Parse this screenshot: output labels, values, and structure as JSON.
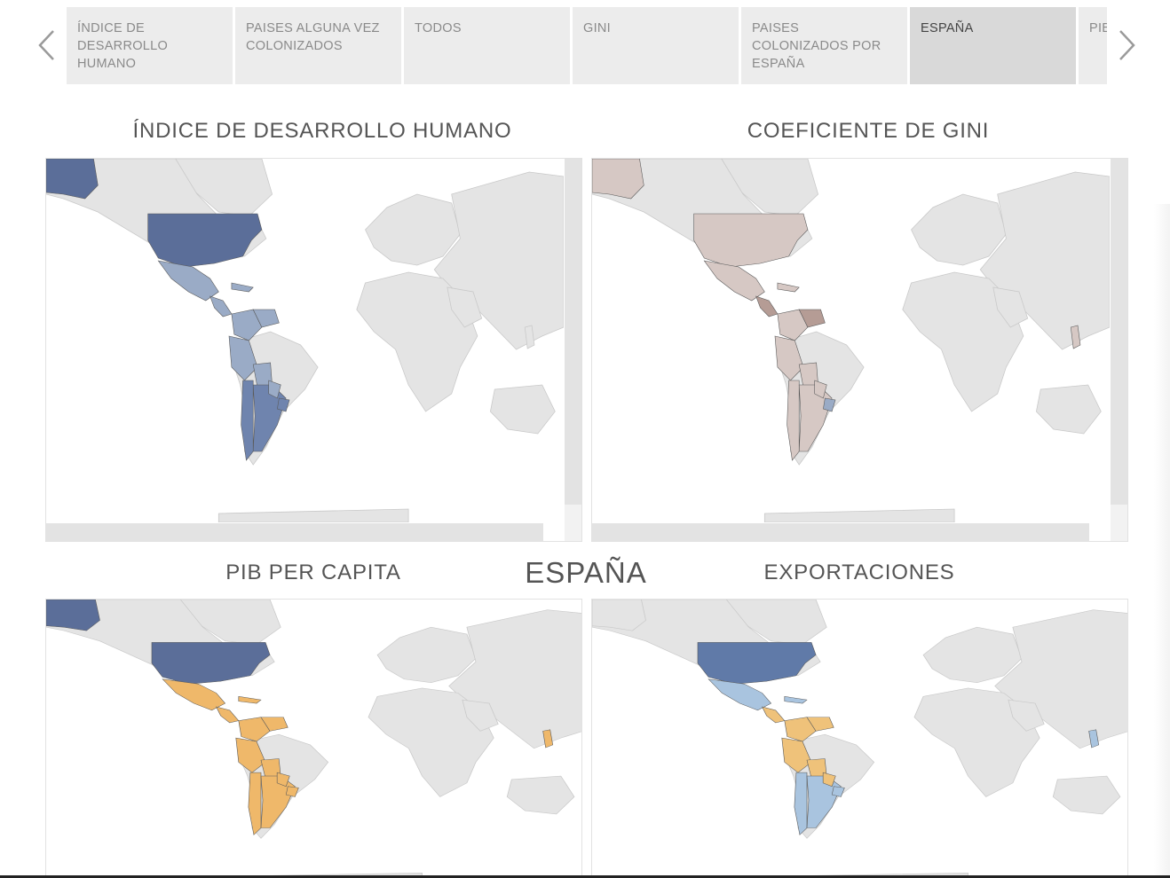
{
  "nav": {
    "prev_label": "Anterior",
    "next_label": "Siguiente"
  },
  "tabs": [
    {
      "label": "ÍNDICE DE DESARROLLO HUMANO",
      "active": false
    },
    {
      "label": "PAISES ALGUNA VEZ COLONIZADOS",
      "active": false
    },
    {
      "label": "TODOS",
      "active": false
    },
    {
      "label": "GINI",
      "active": false
    },
    {
      "label": "PAISES COLONIZADOS POR ESPAÑA",
      "active": false
    },
    {
      "label": "ESPAÑA",
      "active": true
    },
    {
      "label": "PIB",
      "active": false
    }
  ],
  "dashboard": {
    "main_title": "ESPAÑA",
    "maps": [
      {
        "id": "idh",
        "title": "ÍNDICE DE DESARROLLO HUMANO"
      },
      {
        "id": "gini",
        "title": "COEFICIENTE DE GINI"
      },
      {
        "id": "pib",
        "title": "PIB PER CAPITA"
      },
      {
        "id": "export",
        "title": "EXPORTACIONES"
      }
    ]
  },
  "colors": {
    "land": "#e4e4e4",
    "border": "#c9c9c9",
    "idh_high": "#5b6e99",
    "idh_mid": "#9aabc6",
    "idh_strong": "#6f84ae",
    "gini_light": "#d6c8c4",
    "gini_dark": "#b59c95",
    "pib_orange": "#efb86a",
    "exp_blue": "#607aa8",
    "exp_light": "#a9c4df",
    "exp_orange": "#efc27a"
  }
}
